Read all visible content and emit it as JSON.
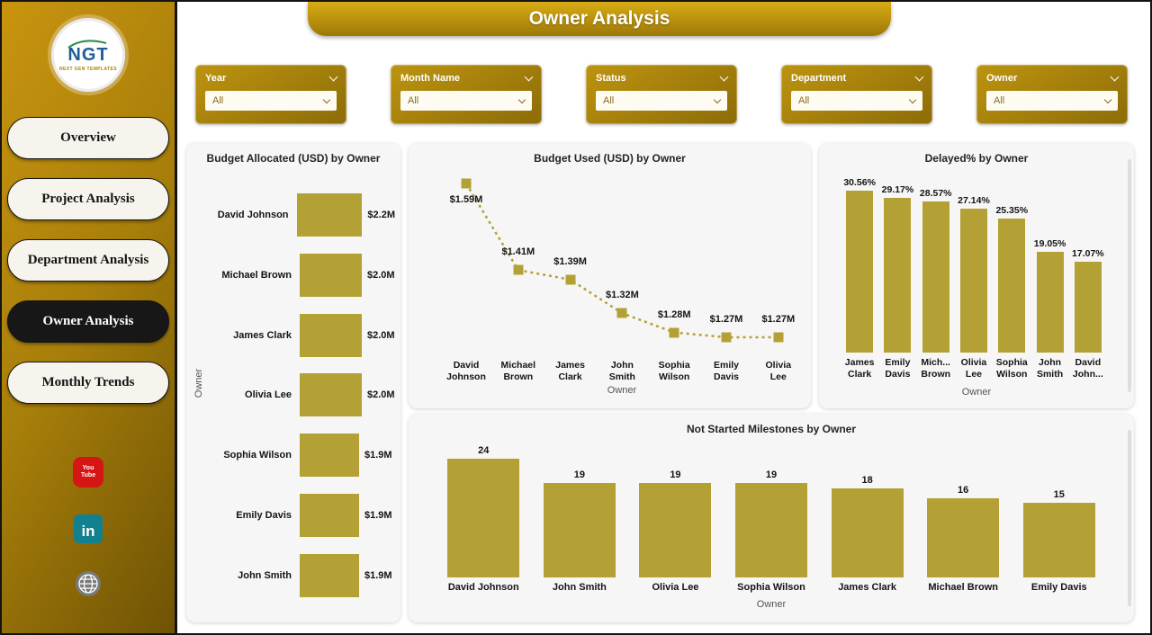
{
  "colors": {
    "gold": "#b4a136",
    "banner_gold": "#b8900c",
    "sidebar_dark": "#6f5305",
    "active_nav": "#171717"
  },
  "header": {
    "title": "Owner Analysis"
  },
  "sidebar": {
    "logo_text": "NGT",
    "logo_subtext": "NEXT GEN TEMPLATES",
    "items": [
      {
        "label": "Overview",
        "active": false
      },
      {
        "label": "Project Analysis",
        "active": false
      },
      {
        "label": "Department Analysis",
        "active": false
      },
      {
        "label": "Owner Analysis",
        "active": true
      },
      {
        "label": "Monthly Trends",
        "active": false
      }
    ],
    "social": [
      {
        "name": "youtube-icon",
        "text": "You Tube"
      },
      {
        "name": "linkedin-icon",
        "text": "in"
      },
      {
        "name": "globe-icon",
        "text": ""
      }
    ]
  },
  "filters": [
    {
      "label": "Year",
      "value": "All"
    },
    {
      "label": "Month Name",
      "value": "All"
    },
    {
      "label": "Status",
      "value": "All"
    },
    {
      "label": "Department",
      "value": "All"
    },
    {
      "label": "Owner",
      "value": "All"
    }
  ],
  "chart_data": [
    {
      "type": "bar",
      "orientation": "horizontal",
      "title": "Budget Allocated (USD) by Owner",
      "axis_label": "Owner",
      "categories": [
        "David Johnson",
        "Michael Brown",
        "James Clark",
        "Olivia Lee",
        "Sophia Wilson",
        "Emily Davis",
        "John Smith"
      ],
      "values": [
        2.2,
        2.0,
        2.0,
        2.0,
        1.9,
        1.9,
        1.9
      ],
      "labels": [
        "$2.2M",
        "$2.0M",
        "$2.0M",
        "$2.0M",
        "$1.9M",
        "$1.9M",
        "$1.9M"
      ],
      "unit": "USD millions"
    },
    {
      "type": "line",
      "title": "Budget Used (USD) by Owner",
      "axis_label": "Owner",
      "categories": [
        "David Johnson",
        "Michael Brown",
        "James Clark",
        "John Smith",
        "Sophia Wilson",
        "Emily Davis",
        "Olivia Lee"
      ],
      "values": [
        1.59,
        1.41,
        1.39,
        1.32,
        1.28,
        1.27,
        1.27
      ],
      "labels": [
        "$1.59M",
        "$1.41M",
        "$1.39M",
        "$1.32M",
        "$1.28M",
        "$1.27M",
        "$1.27M"
      ],
      "unit": "USD millions",
      "line_style": "dotted"
    },
    {
      "type": "bar",
      "orientation": "vertical",
      "title": "Delayed% by Owner",
      "axis_label": "Owner",
      "categories": [
        "James Clark",
        "Emily Davis",
        "Mich... Brown",
        "Olivia Lee",
        "Sophia Wilson",
        "John Smith",
        "David John..."
      ],
      "values": [
        30.56,
        29.17,
        28.57,
        27.14,
        25.35,
        19.05,
        17.07
      ],
      "labels": [
        "30.56%",
        "29.17%",
        "28.57%",
        "27.14%",
        "25.35%",
        "19.05%",
        "17.07%"
      ],
      "unit": "percent"
    },
    {
      "type": "bar",
      "orientation": "vertical",
      "title": "Not Started Milestones by Owner",
      "axis_label": "Owner",
      "categories": [
        "David Johnson",
        "John Smith",
        "Olivia Lee",
        "Sophia Wilson",
        "James Clark",
        "Michael Brown",
        "Emily Davis"
      ],
      "values": [
        24,
        19,
        19,
        19,
        18,
        16,
        15
      ],
      "labels": [
        "24",
        "19",
        "19",
        "19",
        "18",
        "16",
        "15"
      ],
      "unit": "count"
    }
  ]
}
